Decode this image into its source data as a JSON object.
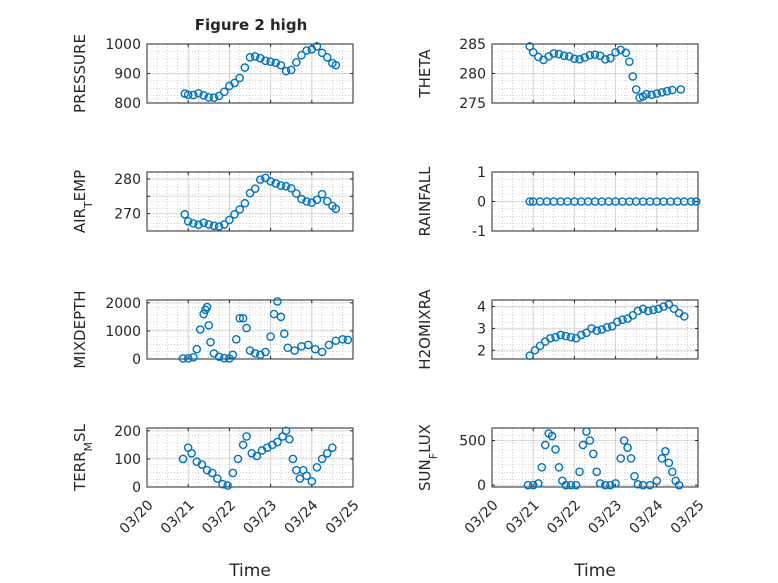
{
  "figure": {
    "title": "Figure 2 high"
  },
  "colors": {
    "marker": "#0072BD",
    "axis": "#262626",
    "grid": "#b0b0b0"
  },
  "chart_data": [
    {
      "type": "scatter",
      "ylabel": "PRESSURE",
      "ylabel_sub": "",
      "ylabel_rest": "",
      "xlim": [
        "03/20",
        "03/25"
      ],
      "ylim": [
        800,
        1000
      ],
      "yticks": [
        800,
        900,
        1000
      ],
      "ytick_labels": [
        "800",
        "900",
        "1000"
      ],
      "xticks": [],
      "xtick_labels": [],
      "xlabel": "",
      "grid": true,
      "points": [
        [
          "03/20 22:00",
          832
        ],
        [
          "03/21 00:00",
          828
        ],
        [
          "03/21 03:00",
          827
        ],
        [
          "03/21 06:00",
          833
        ],
        [
          "03/21 09:00",
          826
        ],
        [
          "03/21 12:00",
          819
        ],
        [
          "03/21 15:00",
          818
        ],
        [
          "03/21 18:00",
          824
        ],
        [
          "03/21 21:00",
          838
        ],
        [
          "03/22 00:00",
          858
        ],
        [
          "03/22 03:00",
          868
        ],
        [
          "03/22 06:00",
          885
        ],
        [
          "03/22 09:00",
          920
        ],
        [
          "03/22 12:00",
          955
        ],
        [
          "03/22 15:00",
          958
        ],
        [
          "03/22 18:00",
          952
        ],
        [
          "03/22 21:00",
          943
        ],
        [
          "03/23 00:00",
          940
        ],
        [
          "03/23 03:00",
          936
        ],
        [
          "03/23 06:00",
          928
        ],
        [
          "03/23 09:00",
          908
        ],
        [
          "03/23 12:00",
          912
        ],
        [
          "03/23 15:00",
          938
        ],
        [
          "03/23 18:00",
          962
        ],
        [
          "03/23 21:00",
          978
        ],
        [
          "03/24 00:00",
          982
        ],
        [
          "03/24 03:00",
          992
        ],
        [
          "03/24 06:00",
          970
        ],
        [
          "03/24 09:00",
          955
        ],
        [
          "03/24 12:00",
          935
        ],
        [
          "03/24 14:00",
          928
        ]
      ]
    },
    {
      "type": "scatter",
      "ylabel": "THETA",
      "ylabel_sub": "",
      "ylabel_rest": "",
      "xlim": [
        "03/20",
        "03/25"
      ],
      "ylim": [
        275,
        285
      ],
      "yticks": [
        275,
        280,
        285
      ],
      "ytick_labels": [
        "275",
        "280",
        "285"
      ],
      "xticks": [],
      "xtick_labels": [],
      "xlabel": "",
      "grid": true,
      "points": [
        [
          "03/20 22:00",
          284.6
        ],
        [
          "03/21 00:00",
          283.6
        ],
        [
          "03/21 03:00",
          282.8
        ],
        [
          "03/21 06:00",
          282.3
        ],
        [
          "03/21 09:00",
          282.9
        ],
        [
          "03/21 12:00",
          283.4
        ],
        [
          "03/21 15:00",
          283.3
        ],
        [
          "03/21 18:00",
          283.0
        ],
        [
          "03/21 21:00",
          282.9
        ],
        [
          "03/22 00:00",
          282.5
        ],
        [
          "03/22 03:00",
          282.4
        ],
        [
          "03/22 06:00",
          282.7
        ],
        [
          "03/22 09:00",
          283.1
        ],
        [
          "03/22 12:00",
          283.2
        ],
        [
          "03/22 15:00",
          283.0
        ],
        [
          "03/22 18:00",
          282.4
        ],
        [
          "03/22 21:00",
          282.6
        ],
        [
          "03/23 00:00",
          283.6
        ],
        [
          "03/23 03:00",
          284.0
        ],
        [
          "03/23 06:00",
          283.5
        ],
        [
          "03/23 08:00",
          282.0
        ],
        [
          "03/23 10:00",
          279.5
        ],
        [
          "03/23 12:00",
          277.3
        ],
        [
          "03/23 14:00",
          275.9
        ],
        [
          "03/23 16:00",
          276.1
        ],
        [
          "03/23 18:00",
          276.5
        ],
        [
          "03/23 21:00",
          276.4
        ],
        [
          "03/24 00:00",
          276.6
        ],
        [
          "03/24 03:00",
          276.8
        ],
        [
          "03/24 06:00",
          277.0
        ],
        [
          "03/24 09:00",
          277.2
        ],
        [
          "03/24 14:00",
          277.3
        ]
      ]
    },
    {
      "type": "scatter",
      "ylabel": "AIR",
      "ylabel_sub": "T",
      "ylabel_rest": "EMP",
      "xlim": [
        "03/20",
        "03/25"
      ],
      "ylim": [
        265,
        282
      ],
      "yticks": [
        270,
        275,
        280
      ],
      "ytick_labels": [
        "270",
        "",
        "280"
      ],
      "xticks": [],
      "xtick_labels": [],
      "xlabel": "",
      "grid": true,
      "points": [
        [
          "03/20 22:00",
          269.8
        ],
        [
          "03/21 00:00",
          267.8
        ],
        [
          "03/21 03:00",
          267.2
        ],
        [
          "03/21 06:00",
          266.8
        ],
        [
          "03/21 09:00",
          267.4
        ],
        [
          "03/21 12:00",
          266.9
        ],
        [
          "03/21 15:00",
          266.5
        ],
        [
          "03/21 18:00",
          266.3
        ],
        [
          "03/21 21:00",
          266.9
        ],
        [
          "03/22 00:00",
          268.2
        ],
        [
          "03/22 03:00",
          269.8
        ],
        [
          "03/22 06:00",
          271.2
        ],
        [
          "03/22 09:00",
          273.0
        ],
        [
          "03/22 12:00",
          275.9
        ],
        [
          "03/22 15:00",
          277.2
        ],
        [
          "03/22 18:00",
          279.8
        ],
        [
          "03/22 21:00",
          280.3
        ],
        [
          "03/23 00:00",
          279.3
        ],
        [
          "03/23 03:00",
          278.7
        ],
        [
          "03/23 06:00",
          278.1
        ],
        [
          "03/23 09:00",
          277.9
        ],
        [
          "03/23 12:00",
          277.3
        ],
        [
          "03/23 15:00",
          275.8
        ],
        [
          "03/23 18:00",
          274.2
        ],
        [
          "03/23 21:00",
          273.5
        ],
        [
          "03/24 00:00",
          273.2
        ],
        [
          "03/24 03:00",
          274.0
        ],
        [
          "03/24 06:00",
          275.6
        ],
        [
          "03/24 09:00",
          273.6
        ],
        [
          "03/24 12:00",
          272.2
        ],
        [
          "03/24 14:00",
          271.4
        ]
      ]
    },
    {
      "type": "scatter",
      "ylabel": "RAINFALL",
      "ylabel_sub": "",
      "ylabel_rest": "",
      "xlim": [
        "03/20",
        "03/25"
      ],
      "ylim": [
        -1,
        1
      ],
      "yticks": [
        -1,
        0,
        1
      ],
      "ytick_labels": [
        "-1",
        "0",
        "1"
      ],
      "xticks": [],
      "xtick_labels": [],
      "xlabel": "",
      "grid": true,
      "points": [
        [
          "03/20 22:00",
          0
        ],
        [
          "03/21 00:00",
          0
        ],
        [
          "03/21 04:00",
          0
        ],
        [
          "03/21 08:00",
          0
        ],
        [
          "03/21 12:00",
          0
        ],
        [
          "03/21 16:00",
          0
        ],
        [
          "03/21 20:00",
          0
        ],
        [
          "03/22 00:00",
          0
        ],
        [
          "03/22 04:00",
          0
        ],
        [
          "03/22 08:00",
          0
        ],
        [
          "03/22 12:00",
          0
        ],
        [
          "03/22 16:00",
          0
        ],
        [
          "03/22 20:00",
          0
        ],
        [
          "03/23 00:00",
          0
        ],
        [
          "03/23 04:00",
          0
        ],
        [
          "03/23 08:00",
          0
        ],
        [
          "03/23 12:00",
          0
        ],
        [
          "03/23 16:00",
          0
        ],
        [
          "03/23 20:00",
          0
        ],
        [
          "03/24 00:00",
          0
        ],
        [
          "03/24 04:00",
          0
        ],
        [
          "03/24 08:00",
          0
        ],
        [
          "03/24 12:00",
          0
        ],
        [
          "03/24 16:00",
          0
        ],
        [
          "03/24 20:00",
          0
        ],
        [
          "03/24 23:00",
          0
        ]
      ]
    },
    {
      "type": "scatter",
      "ylabel": "MIXDEPTH",
      "ylabel_sub": "",
      "ylabel_rest": "",
      "xlim": [
        "03/20",
        "03/25"
      ],
      "ylim": [
        0,
        2100
      ],
      "yticks": [
        0,
        1000,
        2000
      ],
      "ytick_labels": [
        "0",
        "1000",
        "2000"
      ],
      "xticks": [],
      "xtick_labels": [],
      "xlabel": "",
      "grid": true,
      "points": [
        [
          "03/20 21:00",
          20
        ],
        [
          "03/21 00:00",
          25
        ],
        [
          "03/21 03:00",
          60
        ],
        [
          "03/21 05:00",
          350
        ],
        [
          "03/21 07:00",
          1050
        ],
        [
          "03/21 09:00",
          1600
        ],
        [
          "03/21 10:00",
          1750
        ],
        [
          "03/21 11:00",
          1850
        ],
        [
          "03/21 12:00",
          1200
        ],
        [
          "03/21 13:00",
          600
        ],
        [
          "03/21 15:00",
          200
        ],
        [
          "03/21 18:00",
          80
        ],
        [
          "03/21 21:00",
          30
        ],
        [
          "03/22 00:00",
          20
        ],
        [
          "03/22 02:00",
          150
        ],
        [
          "03/22 04:00",
          700
        ],
        [
          "03/22 06:00",
          1450
        ],
        [
          "03/22 08:00",
          1450
        ],
        [
          "03/22 10:00",
          1100
        ],
        [
          "03/22 12:00",
          300
        ],
        [
          "03/22 15:00",
          200
        ],
        [
          "03/22 18:00",
          150
        ],
        [
          "03/22 21:00",
          250
        ],
        [
          "03/23 00:00",
          800
        ],
        [
          "03/23 02:00",
          1600
        ],
        [
          "03/23 04:00",
          2050
        ],
        [
          "03/23 06:00",
          1500
        ],
        [
          "03/23 08:00",
          900
        ],
        [
          "03/23 10:00",
          400
        ],
        [
          "03/23 14:00",
          300
        ],
        [
          "03/23 18:00",
          450
        ],
        [
          "03/23 22:00",
          500
        ],
        [
          "03/24 02:00",
          350
        ],
        [
          "03/24 06:00",
          250
        ],
        [
          "03/24 10:00",
          500
        ],
        [
          "03/24 14:00",
          650
        ],
        [
          "03/24 18:00",
          700
        ],
        [
          "03/24 21:00",
          680
        ]
      ]
    },
    {
      "type": "scatter",
      "ylabel": "H2OMIXRA",
      "ylabel_sub": "",
      "ylabel_rest": "",
      "xlim": [
        "03/20",
        "03/25"
      ],
      "ylim": [
        1.6,
        4.3
      ],
      "yticks": [
        2,
        3,
        4
      ],
      "ytick_labels": [
        "2",
        "3",
        "4"
      ],
      "xticks": [],
      "xtick_labels": [],
      "xlabel": "",
      "grid": true,
      "points": [
        [
          "03/20 22:00",
          1.75
        ],
        [
          "03/21 01:00",
          2.0
        ],
        [
          "03/21 04:00",
          2.2
        ],
        [
          "03/21 07:00",
          2.4
        ],
        [
          "03/21 10:00",
          2.55
        ],
        [
          "03/21 13:00",
          2.6
        ],
        [
          "03/21 16:00",
          2.7
        ],
        [
          "03/21 19:00",
          2.65
        ],
        [
          "03/21 22:00",
          2.6
        ],
        [
          "03/22 01:00",
          2.55
        ],
        [
          "03/22 04:00",
          2.7
        ],
        [
          "03/22 07:00",
          2.8
        ],
        [
          "03/22 10:00",
          3.0
        ],
        [
          "03/22 13:00",
          2.9
        ],
        [
          "03/22 16:00",
          2.95
        ],
        [
          "03/22 19:00",
          3.05
        ],
        [
          "03/22 22:00",
          3.1
        ],
        [
          "03/23 01:00",
          3.3
        ],
        [
          "03/23 04:00",
          3.4
        ],
        [
          "03/23 07:00",
          3.45
        ],
        [
          "03/23 10:00",
          3.6
        ],
        [
          "03/23 13:00",
          3.8
        ],
        [
          "03/23 16:00",
          3.9
        ],
        [
          "03/23 19:00",
          3.8
        ],
        [
          "03/23 22:00",
          3.85
        ],
        [
          "03/24 01:00",
          3.9
        ],
        [
          "03/24 04:00",
          4.0
        ],
        [
          "03/24 07:00",
          4.1
        ],
        [
          "03/24 10:00",
          3.9
        ],
        [
          "03/24 13:00",
          3.7
        ],
        [
          "03/24 16:00",
          3.55
        ]
      ]
    },
    {
      "type": "scatter",
      "ylabel": "TERR",
      "ylabel_sub": "M",
      "ylabel_rest": "SL",
      "xlim": [
        "03/20",
        "03/25"
      ],
      "ylim": [
        0,
        210
      ],
      "yticks": [
        0,
        100,
        200
      ],
      "ytick_labels": [
        "0",
        "100",
        "200"
      ],
      "xticks": [
        "03/20",
        "03/21",
        "03/22",
        "03/23",
        "03/24",
        "03/25"
      ],
      "xtick_labels": [
        "03/20",
        "03/21",
        "03/22",
        "03/23",
        "03/24",
        "03/25"
      ],
      "xlabel": "Time",
      "grid": true,
      "points": [
        [
          "03/20 21:00",
          100
        ],
        [
          "03/21 00:00",
          140
        ],
        [
          "03/21 02:00",
          120
        ],
        [
          "03/21 05:00",
          90
        ],
        [
          "03/21 08:00",
          80
        ],
        [
          "03/21 11:00",
          60
        ],
        [
          "03/21 14:00",
          50
        ],
        [
          "03/21 17:00",
          30
        ],
        [
          "03/21 20:00",
          10
        ],
        [
          "03/21 23:00",
          5
        ],
        [
          "03/22 02:00",
          50
        ],
        [
          "03/22 05:00",
          100
        ],
        [
          "03/22 08:00",
          150
        ],
        [
          "03/22 10:00",
          180
        ],
        [
          "03/22 13:00",
          120
        ],
        [
          "03/22 16:00",
          110
        ],
        [
          "03/22 19:00",
          130
        ],
        [
          "03/22 22:00",
          140
        ],
        [
          "03/23 01:00",
          150
        ],
        [
          "03/23 04:00",
          160
        ],
        [
          "03/23 07:00",
          180
        ],
        [
          "03/23 09:00",
          200
        ],
        [
          "03/23 11:00",
          170
        ],
        [
          "03/23 13:00",
          100
        ],
        [
          "03/23 15:00",
          60
        ],
        [
          "03/23 17:00",
          30
        ],
        [
          "03/23 19:00",
          60
        ],
        [
          "03/23 21:00",
          40
        ],
        [
          "03/24 00:00",
          20
        ],
        [
          "03/24 03:00",
          70
        ],
        [
          "03/24 06:00",
          100
        ],
        [
          "03/24 09:00",
          120
        ],
        [
          "03/24 12:00",
          140
        ]
      ]
    },
    {
      "type": "scatter",
      "ylabel": "SUN",
      "ylabel_sub": "F",
      "ylabel_rest": "LUX",
      "xlim": [
        "03/20",
        "03/25"
      ],
      "ylim": [
        -20,
        640
      ],
      "yticks": [
        0,
        500
      ],
      "ytick_labels": [
        "0",
        "500"
      ],
      "xticks": [
        "03/20",
        "03/21",
        "03/22",
        "03/23",
        "03/24",
        "03/25"
      ],
      "xtick_labels": [
        "03/20",
        "03/21",
        "03/22",
        "03/23",
        "03/24",
        "03/25"
      ],
      "xlabel": "Time",
      "grid": true,
      "points": [
        [
          "03/20 21:00",
          0
        ],
        [
          "03/21 00:00",
          0
        ],
        [
          "03/21 03:00",
          20
        ],
        [
          "03/21 05:00",
          200
        ],
        [
          "03/21 07:00",
          450
        ],
        [
          "03/21 09:00",
          580
        ],
        [
          "03/21 11:00",
          550
        ],
        [
          "03/21 13:00",
          400
        ],
        [
          "03/21 15:00",
          200
        ],
        [
          "03/21 17:00",
          50
        ],
        [
          "03/21 19:00",
          0
        ],
        [
          "03/21 22:00",
          0
        ],
        [
          "03/22 01:00",
          0
        ],
        [
          "03/22 03:00",
          150
        ],
        [
          "03/22 05:00",
          450
        ],
        [
          "03/22 07:00",
          600
        ],
        [
          "03/22 09:00",
          500
        ],
        [
          "03/22 11:00",
          350
        ],
        [
          "03/22 13:00",
          150
        ],
        [
          "03/22 15:00",
          20
        ],
        [
          "03/22 18:00",
          0
        ],
        [
          "03/22 21:00",
          0
        ],
        [
          "03/23 00:00",
          20
        ],
        [
          "03/23 03:00",
          300
        ],
        [
          "03/23 05:00",
          500
        ],
        [
          "03/23 07:00",
          420
        ],
        [
          "03/23 09:00",
          300
        ],
        [
          "03/23 11:00",
          100
        ],
        [
          "03/23 13:00",
          10
        ],
        [
          "03/23 16:00",
          0
        ],
        [
          "03/23 20:00",
          0
        ],
        [
          "03/24 00:00",
          50
        ],
        [
          "03/24 03:00",
          300
        ],
        [
          "03/24 05:00",
          380
        ],
        [
          "03/24 07:00",
          250
        ],
        [
          "03/24 09:00",
          150
        ],
        [
          "03/24 11:00",
          50
        ],
        [
          "03/24 13:00",
          0
        ]
      ]
    }
  ]
}
